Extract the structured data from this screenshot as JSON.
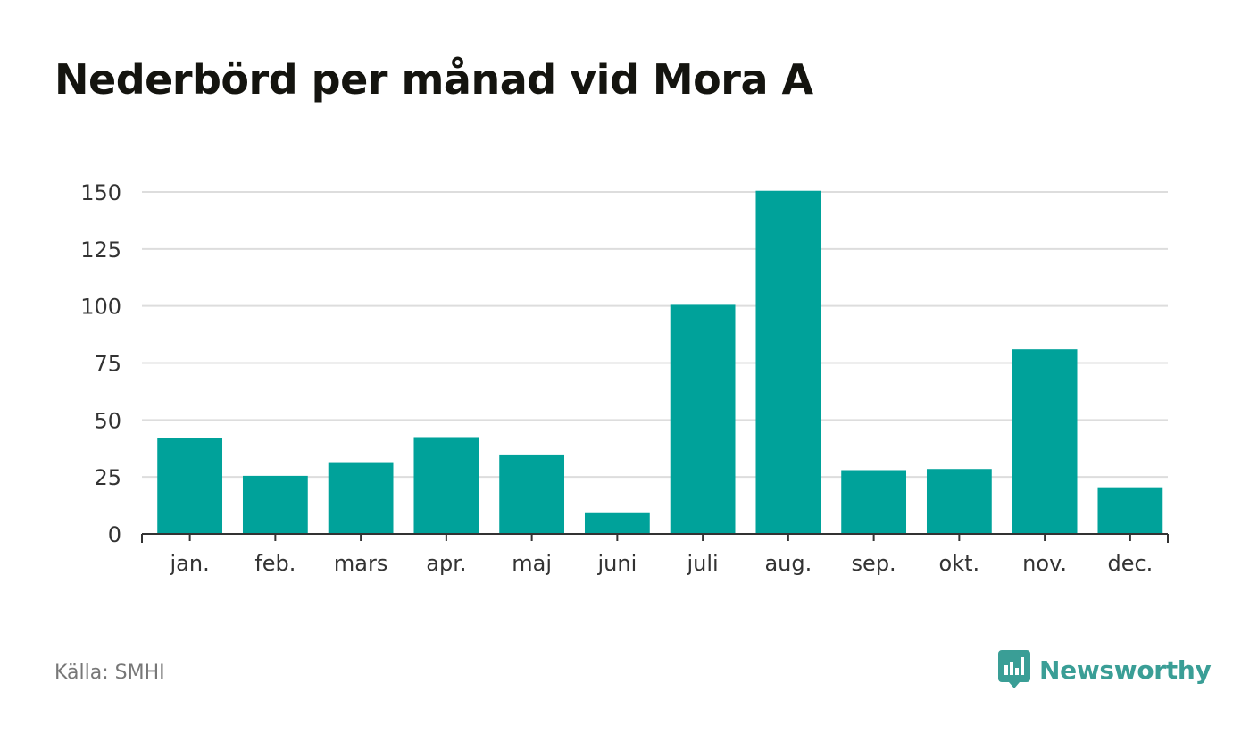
{
  "header": {
    "title": "Nederbörd per månad vid Mora A"
  },
  "footer": {
    "source": "Källa: SMHI",
    "brand": "Newsworthy",
    "brand_icon": "chart-bubble-icon"
  },
  "colors": {
    "bar": "#00a29a",
    "grid": "#dddddd",
    "axis": "#333333",
    "brand": "#3a9e96"
  },
  "chart_data": {
    "type": "bar",
    "title": "Nederbörd per månad vid Mora A",
    "xlabel": "",
    "ylabel": "",
    "categories": [
      "jan.",
      "feb.",
      "mars",
      "apr.",
      "maj",
      "juni",
      "juli",
      "aug.",
      "sep.",
      "okt.",
      "nov.",
      "dec."
    ],
    "values": [
      42,
      25.5,
      31.5,
      42.5,
      34.5,
      9.5,
      100.5,
      150.5,
      28,
      28.5,
      81,
      20.5
    ],
    "ylim": [
      0,
      150
    ],
    "yticks": [
      0,
      25,
      50,
      75,
      100,
      125,
      150
    ],
    "grid": true,
    "legend": "none"
  }
}
